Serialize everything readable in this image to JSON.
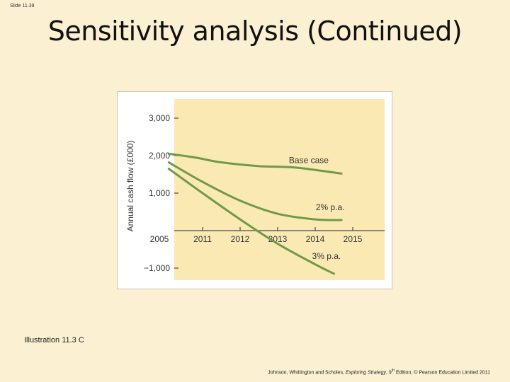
{
  "slide": {
    "number": "Slide 11.39",
    "title": "Sensitivity analysis (Continued)",
    "illustration": "Illustration 11.3 C",
    "credit": {
      "authors": "Johnson, Whittington and Scholes, ",
      "book": "Exploring Strategy",
      "edition_prefix": ", 9",
      "edition_sup": "th",
      "edition_suffix": " Edition, © Pearson Education Limited 2011"
    }
  },
  "colors": {
    "background": "#fbf0d2",
    "plot_bg": "#fbe9b3",
    "line": "#6e9a4a",
    "axis": "#4a4a4a"
  },
  "chart_data": {
    "type": "line",
    "ylabel": "Annual cash flow (£000)",
    "xlim": [
      2005,
      2015.6
    ],
    "ylim": [
      -1200,
      3200
    ],
    "x_ticks": [
      2005,
      2011,
      2012,
      2013,
      2014,
      2015
    ],
    "x_tick_labels": [
      "2005",
      "2011",
      "2012",
      "2013",
      "2014",
      "2015"
    ],
    "y_ticks": [
      3000,
      2000,
      1000,
      -1000
    ],
    "y_tick_labels": [
      "3,000",
      "2,000",
      "1,000",
      "−1,000"
    ],
    "series": [
      {
        "name": "Base case",
        "x": [
          2010.1,
          2010.8,
          2011.5,
          2012.5,
          2013.5,
          2014.7
        ],
        "y": [
          2050,
          1950,
          1820,
          1720,
          1680,
          1520
        ]
      },
      {
        "name": "2% p.a.",
        "x": [
          2010.1,
          2011.0,
          2012.0,
          2013.0,
          2014.0,
          2014.7
        ],
        "y": [
          1820,
          1300,
          800,
          450,
          300,
          280
        ]
      },
      {
        "name": "3% p.a.",
        "x": [
          2010.1,
          2011.0,
          2012.0,
          2013.0,
          2014.0,
          2014.5
        ],
        "y": [
          1650,
          1000,
          300,
          -350,
          -900,
          -1150
        ]
      }
    ],
    "annotations": [
      {
        "text": "Base case",
        "x": 2013.3,
        "y": 1800,
        "anchor": "start"
      },
      {
        "text": "2% p.a.",
        "x": 2014.4,
        "y": 550,
        "anchor": "middle"
      },
      {
        "text": "3% p.a.",
        "x": 2014.3,
        "y": -750,
        "anchor": "middle"
      }
    ],
    "grid": false,
    "legend": "none"
  }
}
